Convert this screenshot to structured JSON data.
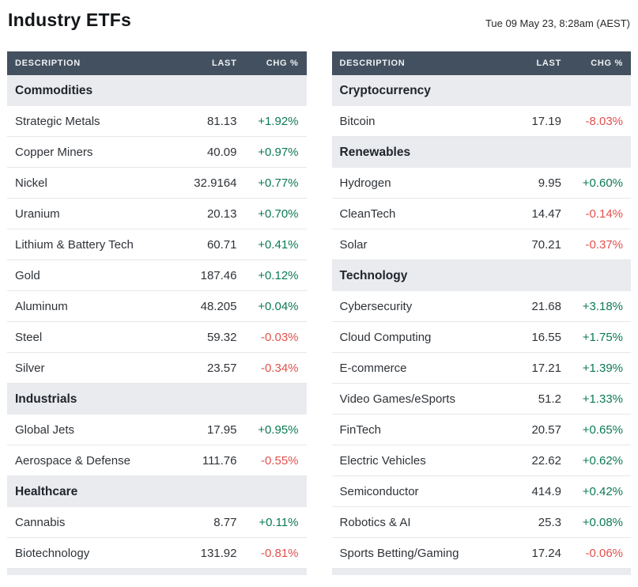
{
  "page": {
    "title": "Industry ETFs",
    "timestamp": "Tue 09 May 23, 8:28am (AEST)"
  },
  "table": {
    "headers": [
      "DESCRIPTION",
      "LAST",
      "CHG %"
    ],
    "columns": [
      {
        "sections": [
          {
            "name": "Commodities",
            "rows": [
              {
                "description": "Strategic Metals",
                "last": "81.13",
                "chg": "+1.92%"
              },
              {
                "description": "Copper Miners",
                "last": "40.09",
                "chg": "+0.97%"
              },
              {
                "description": "Nickel",
                "last": "32.9164",
                "chg": "+0.77%"
              },
              {
                "description": "Uranium",
                "last": "20.13",
                "chg": "+0.70%"
              },
              {
                "description": "Lithium & Battery Tech",
                "last": "60.71",
                "chg": "+0.41%"
              },
              {
                "description": "Gold",
                "last": "187.46",
                "chg": "+0.12%"
              },
              {
                "description": "Aluminum",
                "last": "48.205",
                "chg": "+0.04%"
              },
              {
                "description": "Steel",
                "last": "59.32",
                "chg": "-0.03%"
              },
              {
                "description": "Silver",
                "last": "23.57",
                "chg": "-0.34%"
              }
            ]
          },
          {
            "name": "Industrials",
            "rows": [
              {
                "description": "Global Jets",
                "last": "17.95",
                "chg": "+0.95%"
              },
              {
                "description": "Aerospace & Defense",
                "last": "111.76",
                "chg": "-0.55%"
              }
            ]
          },
          {
            "name": "Healthcare",
            "rows": [
              {
                "description": "Cannabis",
                "last": "8.77",
                "chg": "+0.11%"
              },
              {
                "description": "Biotechnology",
                "last": "131.92",
                "chg": "-0.81%"
              }
            ]
          }
        ]
      },
      {
        "sections": [
          {
            "name": "Cryptocurrency",
            "rows": [
              {
                "description": "Bitcoin",
                "last": "17.19",
                "chg": "-8.03%"
              }
            ]
          },
          {
            "name": "Renewables",
            "rows": [
              {
                "description": "Hydrogen",
                "last": "9.95",
                "chg": "+0.60%"
              },
              {
                "description": "CleanTech",
                "last": "14.47",
                "chg": "-0.14%"
              },
              {
                "description": "Solar",
                "last": "70.21",
                "chg": "-0.37%"
              }
            ]
          },
          {
            "name": "Technology",
            "rows": [
              {
                "description": "Cybersecurity",
                "last": "21.68",
                "chg": "+3.18%"
              },
              {
                "description": "Cloud Computing",
                "last": "16.55",
                "chg": "+1.75%"
              },
              {
                "description": "E-commerce",
                "last": "17.21",
                "chg": "+1.39%"
              },
              {
                "description": "Video Games/eSports",
                "last": "51.2",
                "chg": "+1.33%"
              },
              {
                "description": "FinTech",
                "last": "20.57",
                "chg": "+0.65%"
              },
              {
                "description": "Electric Vehicles",
                "last": "22.62",
                "chg": "+0.62%"
              },
              {
                "description": "Semiconductor",
                "last": "414.9",
                "chg": "+0.42%"
              },
              {
                "description": "Robotics & AI",
                "last": "25.3",
                "chg": "+0.08%"
              },
              {
                "description": "Sports Betting/Gaming",
                "last": "17.24",
                "chg": "-0.06%"
              }
            ]
          }
        ]
      }
    ]
  },
  "colors": {
    "positive": "#0d7a52",
    "negative": "#e0514d",
    "header_bg": "#43505f",
    "section_bg": "#e9ebef"
  }
}
